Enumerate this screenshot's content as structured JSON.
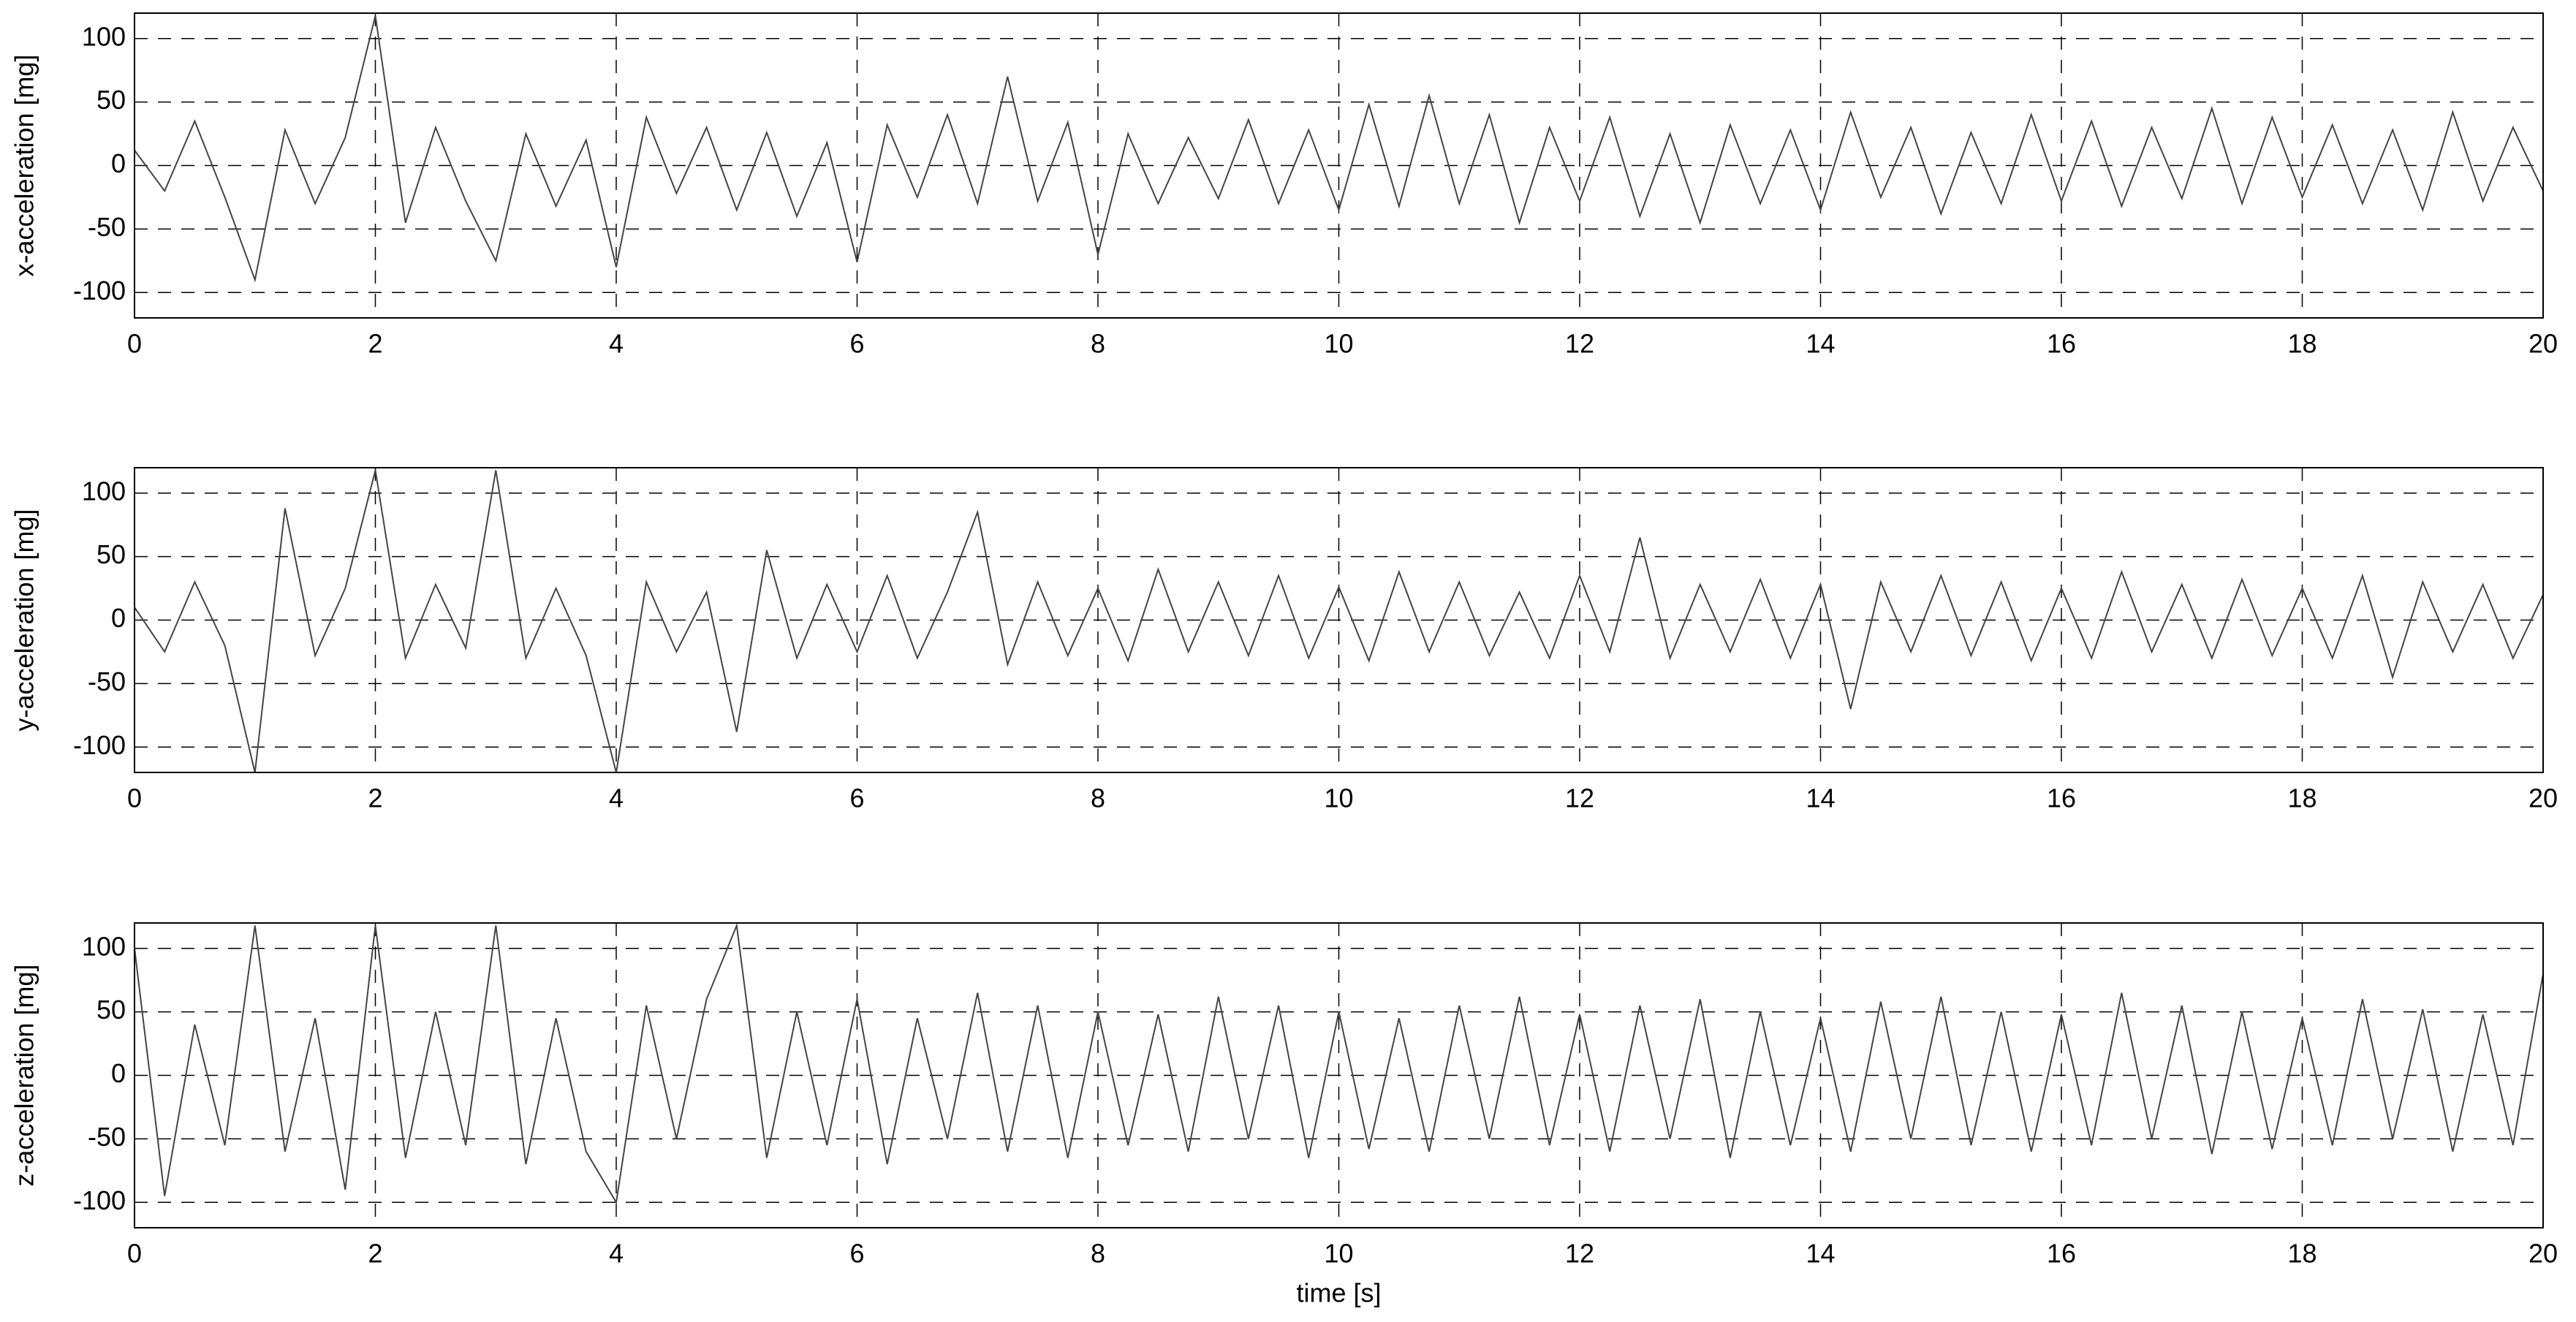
{
  "chart_data": [
    {
      "type": "line",
      "ylabel": "x-acceleration [mg]",
      "x": [
        0,
        0.25,
        0.5,
        0.75,
        1,
        1.25,
        1.5,
        1.75,
        2,
        2.25,
        2.5,
        2.75,
        3,
        3.25,
        3.5,
        3.75,
        4,
        4.25,
        4.5,
        4.75,
        5,
        5.25,
        5.5,
        5.75,
        6,
        6.25,
        6.5,
        6.75,
        7,
        7.25,
        7.5,
        7.75,
        8,
        8.25,
        8.5,
        8.75,
        9,
        9.25,
        9.5,
        9.75,
        10,
        10.25,
        10.5,
        10.75,
        11,
        11.25,
        11.5,
        11.75,
        12,
        12.25,
        12.5,
        12.75,
        13,
        13.25,
        13.5,
        13.75,
        14,
        14.25,
        14.5,
        14.75,
        15,
        15.25,
        15.5,
        15.75,
        16,
        16.25,
        16.5,
        16.75,
        17,
        17.25,
        17.5,
        17.75,
        18,
        18.25,
        18.5,
        18.75,
        19,
        19.25,
        19.5,
        19.75,
        20
      ],
      "series": [
        {
          "color": "#444444",
          "values": [
            12,
            -20,
            35,
            -25,
            -90,
            28,
            -30,
            22,
            118,
            -45,
            30,
            -28,
            -75,
            25,
            -32,
            20,
            -80,
            38,
            -22,
            30,
            -35,
            26,
            -40,
            18,
            -76,
            32,
            -25,
            40,
            -30,
            70,
            -28,
            34,
            -70,
            25,
            -30,
            22,
            -26,
            36,
            -30,
            28,
            -35,
            48,
            -32,
            55,
            -30,
            40,
            -45,
            30,
            -28,
            38,
            -40,
            25,
            -45,
            32,
            -30,
            28,
            -35,
            42,
            -25,
            30,
            -38,
            26,
            -30,
            40,
            -28,
            35,
            -32,
            30,
            -26,
            45,
            -30,
            38,
            -25,
            32,
            -30,
            28,
            -35,
            42,
            -28,
            30,
            -20
          ]
        }
      ],
      "xlim": [
        0,
        20
      ],
      "ylim": [
        -120,
        120
      ],
      "xticks": [
        0,
        2,
        4,
        6,
        8,
        10,
        12,
        14,
        16,
        18,
        20
      ],
      "yticks": [
        -100,
        -50,
        0,
        50,
        100
      ],
      "grid": true
    },
    {
      "type": "line",
      "ylabel": "y-acceleration [mg]",
      "x": [
        0,
        0.25,
        0.5,
        0.75,
        1,
        1.25,
        1.5,
        1.75,
        2,
        2.25,
        2.5,
        2.75,
        3,
        3.25,
        3.5,
        3.75,
        4,
        4.25,
        4.5,
        4.75,
        5,
        5.25,
        5.5,
        5.75,
        6,
        6.25,
        6.5,
        6.75,
        7,
        7.25,
        7.5,
        7.75,
        8,
        8.25,
        8.5,
        8.75,
        9,
        9.25,
        9.5,
        9.75,
        10,
        10.25,
        10.5,
        10.75,
        11,
        11.25,
        11.5,
        11.75,
        12,
        12.25,
        12.5,
        12.75,
        13,
        13.25,
        13.5,
        13.75,
        14,
        14.25,
        14.5,
        14.75,
        15,
        15.25,
        15.5,
        15.75,
        16,
        16.25,
        16.5,
        16.75,
        17,
        17.25,
        17.5,
        17.75,
        18,
        18.25,
        18.5,
        18.75,
        19,
        19.25,
        19.5,
        19.75,
        20
      ],
      "series": [
        {
          "color": "#444444",
          "values": [
            10,
            -25,
            30,
            -20,
            -120,
            88,
            -28,
            25,
            118,
            -30,
            28,
            -22,
            118,
            -30,
            25,
            -28,
            -120,
            30,
            -25,
            22,
            -88,
            55,
            -30,
            28,
            -25,
            35,
            -30,
            22,
            85,
            -35,
            30,
            -28,
            25,
            -32,
            40,
            -25,
            30,
            -28,
            35,
            -30,
            26,
            -32,
            38,
            -25,
            30,
            -28,
            22,
            -30,
            35,
            -25,
            65,
            -30,
            28,
            -25,
            32,
            -30,
            28,
            -70,
            30,
            -25,
            35,
            -28,
            30,
            -32,
            25,
            -30,
            38,
            -25,
            28,
            -30,
            32,
            -28,
            25,
            -30,
            35,
            -45,
            30,
            -25,
            28,
            -30,
            20
          ]
        }
      ],
      "xlim": [
        0,
        20
      ],
      "ylim": [
        -120,
        120
      ],
      "xticks": [
        0,
        2,
        4,
        6,
        8,
        10,
        12,
        14,
        16,
        18,
        20
      ],
      "yticks": [
        -100,
        -50,
        0,
        50,
        100
      ],
      "grid": true
    },
    {
      "type": "line",
      "ylabel": "z-acceleration [mg]",
      "xlabel": "time [s]",
      "x": [
        0,
        0.25,
        0.5,
        0.75,
        1,
        1.25,
        1.5,
        1.75,
        2,
        2.25,
        2.5,
        2.75,
        3,
        3.25,
        3.5,
        3.75,
        4,
        4.25,
        4.5,
        4.75,
        5,
        5.25,
        5.5,
        5.75,
        6,
        6.25,
        6.5,
        6.75,
        7,
        7.25,
        7.5,
        7.75,
        8,
        8.25,
        8.5,
        8.75,
        9,
        9.25,
        9.5,
        9.75,
        10,
        10.25,
        10.5,
        10.75,
        11,
        11.25,
        11.5,
        11.75,
        12,
        12.25,
        12.5,
        12.75,
        13,
        13.25,
        13.5,
        13.75,
        14,
        14.25,
        14.5,
        14.75,
        15,
        15.25,
        15.5,
        15.75,
        16,
        16.25,
        16.5,
        16.75,
        17,
        17.25,
        17.5,
        17.75,
        18,
        18.25,
        18.5,
        18.75,
        19,
        19.25,
        19.5,
        19.75,
        20
      ],
      "series": [
        {
          "color": "#444444",
          "values": [
            100,
            -95,
            40,
            -55,
            118,
            -60,
            45,
            -90,
            118,
            -65,
            50,
            -55,
            118,
            -70,
            45,
            -60,
            -100,
            55,
            -50,
            60,
            118,
            -65,
            50,
            -55,
            60,
            -70,
            45,
            -50,
            65,
            -60,
            55,
            -65,
            50,
            -55,
            48,
            -60,
            62,
            -50,
            55,
            -65,
            50,
            -58,
            45,
            -60,
            55,
            -50,
            62,
            -55,
            48,
            -60,
            55,
            -50,
            60,
            -65,
            50,
            -55,
            45,
            -60,
            58,
            -50,
            62,
            -55,
            50,
            -60,
            48,
            -55,
            65,
            -50,
            55,
            -62,
            50,
            -58,
            45,
            -55,
            60,
            -50,
            52,
            -60,
            48,
            -55,
            80
          ]
        }
      ],
      "xlim": [
        0,
        20
      ],
      "ylim": [
        -120,
        120
      ],
      "xticks": [
        0,
        2,
        4,
        6,
        8,
        10,
        12,
        14,
        16,
        18,
        20
      ],
      "yticks": [
        -100,
        -50,
        0,
        50,
        100
      ],
      "grid": true
    }
  ]
}
